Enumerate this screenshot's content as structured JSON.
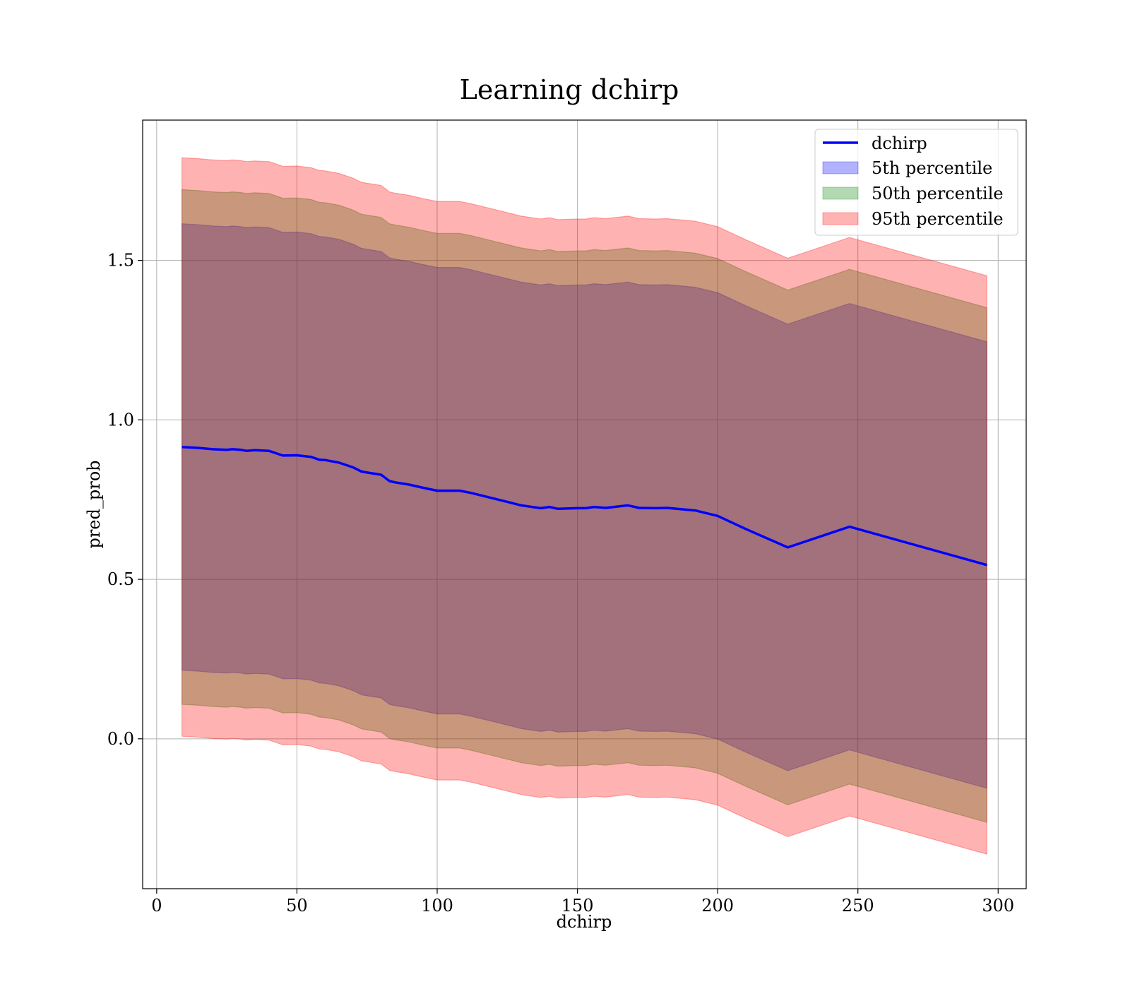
{
  "chart_data": {
    "type": "area",
    "title": "Learning dchirp",
    "xlabel": "dchirp",
    "ylabel": "pred_prob",
    "xlim": [
      -5,
      310
    ],
    "ylim": [
      -0.47,
      1.94
    ],
    "xticks": [
      0,
      50,
      100,
      150,
      200,
      250,
      300
    ],
    "xtick_labels": [
      "0",
      "50",
      "100",
      "150",
      "200",
      "250",
      "300"
    ],
    "yticks": [
      0.0,
      0.5,
      1.0,
      1.5
    ],
    "ytick_labels": [
      "0.0",
      "0.5",
      "1.0",
      "1.5"
    ],
    "grid": true,
    "legend_position": "top-right",
    "colors": {
      "line": "#0000ff",
      "band_5th": "#0000ff",
      "band_50th": "#008000",
      "band_95th": "#ff0000"
    },
    "x": [
      9,
      15,
      20,
      25,
      27,
      30,
      32,
      35,
      40,
      45,
      50,
      55,
      58,
      60,
      65,
      70,
      73,
      75,
      80,
      83,
      85,
      90,
      95,
      100,
      108,
      112,
      118,
      125,
      130,
      137,
      140,
      143,
      150,
      153,
      156,
      160,
      168,
      172,
      178,
      182,
      192,
      200,
      210,
      225,
      247,
      296
    ],
    "series": [
      {
        "name": "dchirp",
        "kind": "line",
        "values": [
          0.915,
          0.912,
          0.908,
          0.906,
          0.908,
          0.906,
          0.903,
          0.905,
          0.903,
          0.888,
          0.889,
          0.884,
          0.875,
          0.874,
          0.866,
          0.851,
          0.838,
          0.835,
          0.828,
          0.808,
          0.804,
          0.797,
          0.787,
          0.778,
          0.778,
          0.771,
          0.758,
          0.743,
          0.732,
          0.723,
          0.727,
          0.721,
          0.723,
          0.723,
          0.727,
          0.724,
          0.732,
          0.724,
          0.723,
          0.724,
          0.716,
          0.699,
          0.658,
          0.6,
          0.665,
          0.545
        ]
      },
      {
        "name": "5th percentile",
        "kind": "band",
        "half_width": 0.7
      },
      {
        "name": "50th percentile",
        "kind": "band",
        "half_width": 0.807
      },
      {
        "name": "95th percentile",
        "kind": "band",
        "half_width": 0.907
      }
    ]
  }
}
